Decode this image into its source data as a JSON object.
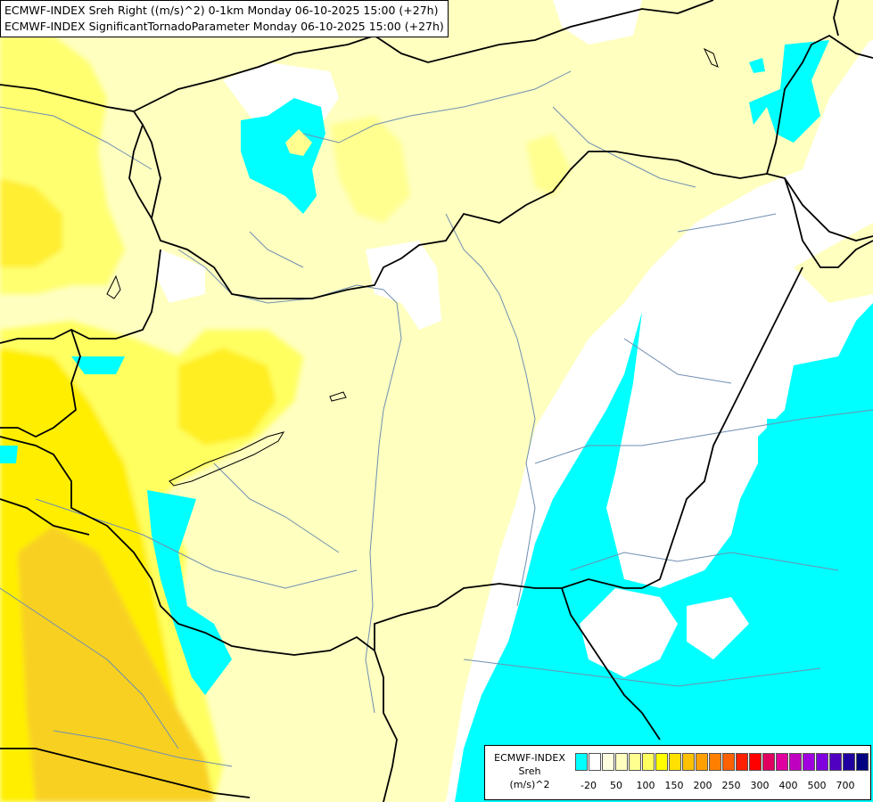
{
  "map": {
    "title_lines": [
      "ECMWF-INDEX Sreh Right ((m/s)^2) 0-1km Monday 06-10-2025 15:00 (+27h)",
      "ECMWF-INDEX SignificantTornadoParameter Monday 06-10-2025 15:00 (+27h)"
    ],
    "colors": {
      "background": "#ffffff",
      "light_yellow": "#ffffc0",
      "yellow": "#ffff60",
      "bright_yellow": "#ffee20",
      "orange_yellow": "#f8d020",
      "cyan": "#00ffff",
      "border": "#000000",
      "river": "#6f8fb0"
    }
  },
  "legend": {
    "title_lines": [
      "ECMWF-INDEX",
      "Sreh",
      "(m/s)^2"
    ],
    "swatch_colors": [
      "#00ffff",
      "#ffffff",
      "#ffffe0",
      "#ffffc0",
      "#ffff90",
      "#ffff60",
      "#ffff00",
      "#ffe000",
      "#ffc000",
      "#ffa000",
      "#ff8000",
      "#ff6000",
      "#ff2000",
      "#ff0000",
      "#e00060",
      "#e000a0",
      "#c000c0",
      "#a000e0",
      "#8000e0",
      "#5000c0",
      "#2000a0",
      "#000080"
    ],
    "labels": [
      "-20",
      "50",
      "100",
      "150",
      "200",
      "250",
      "300",
      "400",
      "500",
      "700"
    ]
  }
}
